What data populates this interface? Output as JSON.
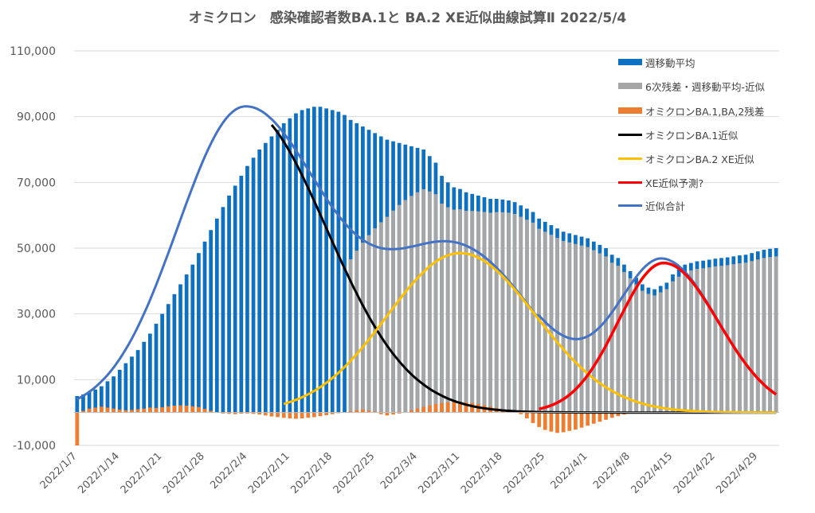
{
  "chart_data": {
    "type": "bar",
    "title": "オミクロン　感染確認者数BA.1と BA.2  XE近似曲線試算Ⅱ  2022/5/4",
    "ylim": [
      -10000,
      110000
    ],
    "y_ticks": [
      "110,000",
      "90,000",
      "70,000",
      "50,000",
      "30,000",
      "10,000",
      "-10,000"
    ],
    "y_tick_values": [
      110000,
      90000,
      70000,
      50000,
      30000,
      10000,
      -10000
    ],
    "x_tick_labels": [
      "2022/1/7",
      "2022/1/14",
      "2022/1/21",
      "2022/1/28",
      "2022/2/4",
      "2022/2/11",
      "2022/2/18",
      "2022/2/25",
      "2022/3/4",
      "2022/3/11",
      "2022/3/18",
      "2022/3/25",
      "2022/4/1",
      "2022/4/8",
      "2022/4/15",
      "2022/4/22",
      "2022/4/29"
    ],
    "day_count": 116,
    "legend_position": "top-right",
    "grid": "horizontal",
    "colors": {
      "weekly_avg": "#0F70BF",
      "residual6": "#A6A6A6",
      "omicron_residual": "#ED7D31",
      "ba1": "#000000",
      "ba2xe": "#FFC000",
      "xe": "#FF0000",
      "total": "#4472C4",
      "grid": "#D9D9D9",
      "axis_text": "#595959"
    },
    "series": [
      {
        "name": "週移動平均",
        "kind": "bar",
        "values": [
          5000,
          5500,
          6200,
          7000,
          8000,
          9500,
          11000,
          13000,
          15000,
          17000,
          19000,
          21500,
          24000,
          27000,
          30000,
          33000,
          36000,
          39000,
          42000,
          45000,
          48500,
          52000,
          55500,
          59000,
          62500,
          66000,
          69000,
          72000,
          75000,
          77500,
          80000,
          82000,
          84000,
          86000,
          88000,
          89500,
          91000,
          92000,
          92500,
          93000,
          93000,
          92500,
          92000,
          91500,
          90500,
          89000,
          88000,
          87000,
          86000,
          85000,
          84000,
          83000,
          82500,
          82000,
          81500,
          81000,
          80500,
          80000,
          78000,
          76000,
          72000,
          70000,
          68500,
          68000,
          67000,
          66500,
          66000,
          65500,
          65000,
          65000,
          64800,
          64500,
          64000,
          63000,
          62000,
          61000,
          59000,
          58000,
          57000,
          56000,
          55000,
          54500,
          54000,
          53500,
          53000,
          52000,
          51000,
          50000,
          48000,
          47000,
          45000,
          43000,
          41000,
          39000,
          38000,
          37500,
          38500,
          39500,
          42000,
          43500,
          45000,
          45500,
          46000,
          46200,
          46500,
          46800,
          47000,
          47200,
          47500,
          47800,
          48000,
          48500,
          49000,
          49500,
          49800,
          50000
        ]
      },
      {
        "name": "6次残差・週移動平均-近似",
        "kind": "bar",
        "values": []
      },
      {
        "name": "オミクロンBA.1,BA,2残差",
        "kind": "bar",
        "values": []
      },
      {
        "name": "オミクロンBA.1近似",
        "kind": "line",
        "values": []
      },
      {
        "name": "オミクロンBA.2 XE近似",
        "kind": "line",
        "values": []
      },
      {
        "name": "XE近似予測?",
        "kind": "line",
        "values": []
      },
      {
        "name": "近似合計",
        "kind": "line",
        "values": []
      }
    ],
    "curve_params": {
      "ba1": {
        "peak": 92500,
        "center_day": 27.5,
        "sigma_left": 11,
        "sigma_right": 13.5
      },
      "ba2": {
        "peak": 48500,
        "center_day": 63,
        "sigma_left": 12,
        "sigma_right": 12.5
      },
      "xe": {
        "peak": 45500,
        "center_day": 96.5,
        "sigma_left": 7.5,
        "sigma_right": 9,
        "start_day": 76
      },
      "ba2_tail": {
        "base": 1000,
        "floor": 600,
        "decay": 18,
        "start_day": 76
      }
    },
    "omicron_residual_values": [
      -10000,
      500,
      1200,
      1500,
      1800,
      1500,
      1200,
      900,
      700,
      800,
      1000,
      1200,
      1500,
      1400,
      1600,
      1900,
      2100,
      2200,
      2100,
      1900,
      1700,
      1100,
      500,
      0,
      -300,
      -400,
      -500,
      -350,
      -300,
      -400,
      -600,
      -900,
      -1200,
      -1400,
      -1600,
      -1800,
      -1900,
      -1800,
      -1600,
      -1400,
      -1100,
      -800,
      -500,
      -200,
      100,
      400,
      700,
      900,
      600,
      300,
      -500,
      -900,
      -600,
      -300,
      100,
      700,
      1200,
      1700,
      2200,
      2600,
      2900,
      3100,
      3200,
      3200,
      3100,
      2900,
      2600,
      2200,
      1800,
      1400,
      900,
      500,
      100,
      -500,
      -1800,
      -3200,
      -4400,
      -5300,
      -5800,
      -6200,
      -6000,
      -5600,
      -5200,
      -4600,
      -4000,
      -3400,
      -2800,
      -2200,
      -1600,
      -1100,
      -600,
      -200,
      0,
      0,
      0,
      0,
      0
    ]
  }
}
